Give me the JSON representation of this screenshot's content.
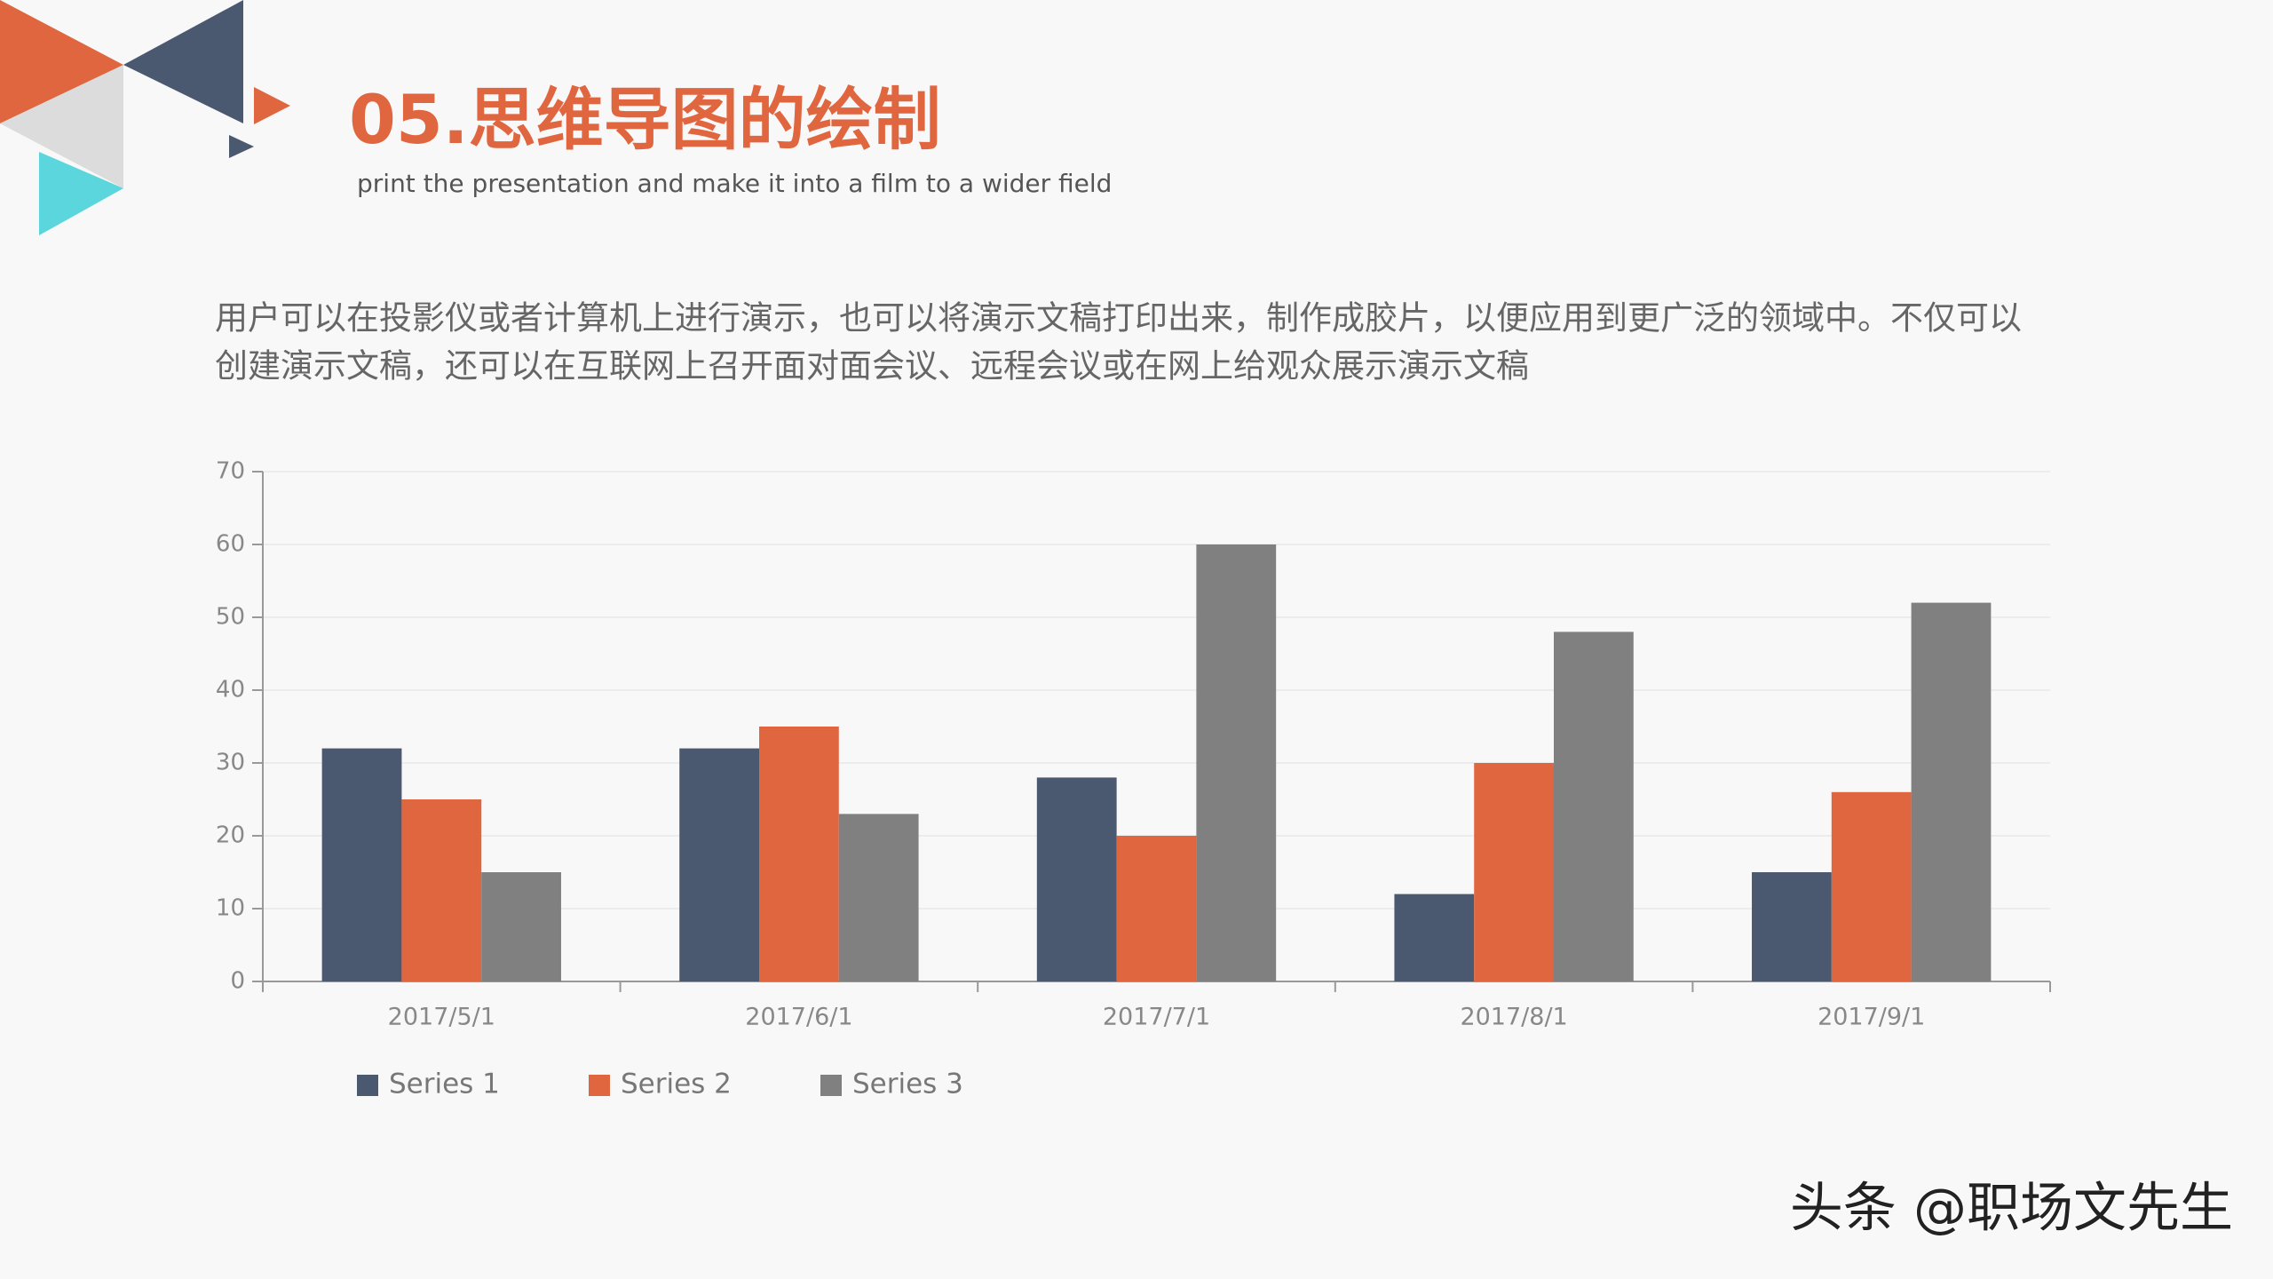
{
  "header": {
    "title": "05.思维导图的绘制",
    "subtitle": "print the presentation and make it into a film to a wider field"
  },
  "body": {
    "lines": [
      "用户可以在投影仪或者计算机上进行演示，也可以将演示文稿打印出来，制作成胶片，以便应用到更广泛的领域中。不仅可以",
      "创建演示文稿，还可以在互联网上召开面对面会议、远程会议或在网上给观众展示演示文稿"
    ]
  },
  "chart_data": {
    "type": "bar",
    "categories": [
      "2017/5/1",
      "2017/6/1",
      "2017/7/1",
      "2017/8/1",
      "2017/9/1"
    ],
    "series": [
      {
        "name": "Series 1",
        "color": "#4a5870",
        "values": [
          32,
          32,
          28,
          12,
          15
        ]
      },
      {
        "name": "Series 2",
        "color": "#e06640",
        "values": [
          25,
          35,
          20,
          30,
          26
        ]
      },
      {
        "name": "Series 3",
        "color": "#808080",
        "values": [
          15,
          23,
          60,
          48,
          52
        ]
      }
    ],
    "ylim": [
      0,
      70
    ],
    "yticks": [
      0,
      10,
      20,
      30,
      40,
      50,
      60,
      70
    ],
    "grid": true,
    "legend": "bottom-left"
  },
  "watermark": "头条 @职场文先生"
}
